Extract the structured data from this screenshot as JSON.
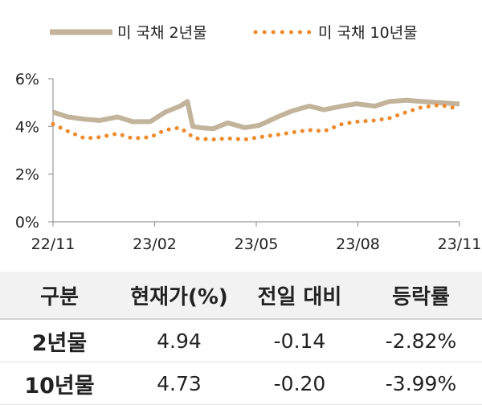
{
  "chart_data": {
    "type": "line",
    "title": "",
    "xlabel": "",
    "ylabel": "",
    "ylim": [
      0,
      6
    ],
    "yticks": [
      "0%",
      "2%",
      "4%",
      "6%"
    ],
    "y_tick_values": [
      0,
      2,
      4,
      6
    ],
    "xticks": [
      "22/11",
      "23/02",
      "23/05",
      "23/08",
      "23/11"
    ],
    "grid": false,
    "legend_position": "top",
    "series": [
      {
        "name": "미 국채 2년물",
        "color": "#c2b49a",
        "style": "solid",
        "x": [
          "2022-11-01",
          "2022-11-15",
          "2022-12-01",
          "2022-12-15",
          "2023-01-01",
          "2023-01-15",
          "2023-02-01",
          "2023-02-15",
          "2023-03-01",
          "2023-03-08",
          "2023-03-13",
          "2023-03-20",
          "2023-04-01",
          "2023-04-15",
          "2023-05-01",
          "2023-05-15",
          "2023-06-01",
          "2023-06-15",
          "2023-07-01",
          "2023-07-15",
          "2023-08-01",
          "2023-08-15",
          "2023-09-01",
          "2023-09-15",
          "2023-10-01",
          "2023-10-15",
          "2023-11-01",
          "2023-11-20"
        ],
        "values": [
          4.6,
          4.4,
          4.3,
          4.25,
          4.4,
          4.2,
          4.2,
          4.6,
          4.85,
          5.05,
          4.0,
          3.95,
          3.9,
          4.15,
          3.95,
          4.05,
          4.4,
          4.65,
          4.85,
          4.7,
          4.85,
          4.95,
          4.85,
          5.05,
          5.1,
          5.05,
          5.0,
          4.94
        ]
      },
      {
        "name": "미 국채 10년물",
        "color": "#ef8a2c",
        "style": "dotted",
        "x": [
          "2022-11-01",
          "2022-11-15",
          "2022-12-01",
          "2022-12-15",
          "2023-01-01",
          "2023-01-15",
          "2023-02-01",
          "2023-02-15",
          "2023-03-01",
          "2023-03-15",
          "2023-04-01",
          "2023-04-15",
          "2023-05-01",
          "2023-05-15",
          "2023-06-01",
          "2023-06-15",
          "2023-07-01",
          "2023-07-15",
          "2023-08-01",
          "2023-08-15",
          "2023-09-01",
          "2023-09-15",
          "2023-10-01",
          "2023-10-15",
          "2023-11-01",
          "2023-11-20"
        ],
        "values": [
          4.1,
          3.8,
          3.5,
          3.55,
          3.7,
          3.5,
          3.55,
          3.85,
          3.95,
          3.5,
          3.45,
          3.5,
          3.45,
          3.55,
          3.65,
          3.75,
          3.85,
          3.8,
          4.1,
          4.2,
          4.25,
          4.35,
          4.6,
          4.8,
          4.9,
          4.73
        ]
      }
    ]
  },
  "table": {
    "headers": [
      "구분",
      "현재가(%)",
      "전일 대비",
      "등락률"
    ],
    "rows": [
      [
        "2년물",
        "4.94",
        "-0.14",
        "-2.82%"
      ],
      [
        "10년물",
        "4.73",
        "-0.20",
        "-3.99%"
      ]
    ]
  }
}
